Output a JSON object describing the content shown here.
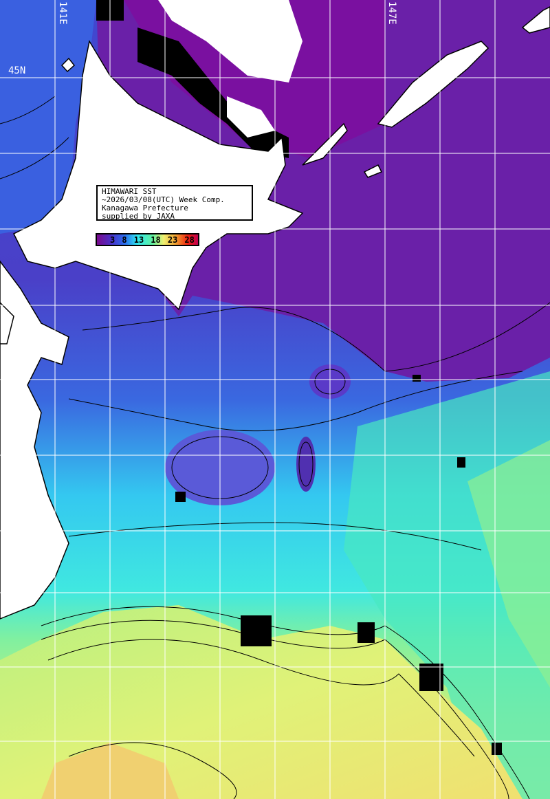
{
  "info_box": {
    "line1": "HIMAWARI SST",
    "line2": "~2026/03/08(UTC) Week Comp.",
    "line3": "Kanagawa Prefecture",
    "line4": "supplied by JAXA"
  },
  "colorbar": {
    "unit_hint_ticks": [
      "3",
      "8",
      "13",
      "18",
      "23",
      "28"
    ],
    "colors": [
      "#7a0a8c",
      "#4a30c8",
      "#2a70f0",
      "#30e8f0",
      "#60f0a0",
      "#f0f070",
      "#f0a030",
      "#f02010",
      "#c00050"
    ]
  },
  "grid_labels": {
    "lon_141": "141E",
    "lon_147": "147E",
    "lat_45": "45N"
  },
  "colors": {
    "land": "#ffffff",
    "cloud_mask": "#000000",
    "grid": "#ffffff",
    "contour": "#000000"
  }
}
